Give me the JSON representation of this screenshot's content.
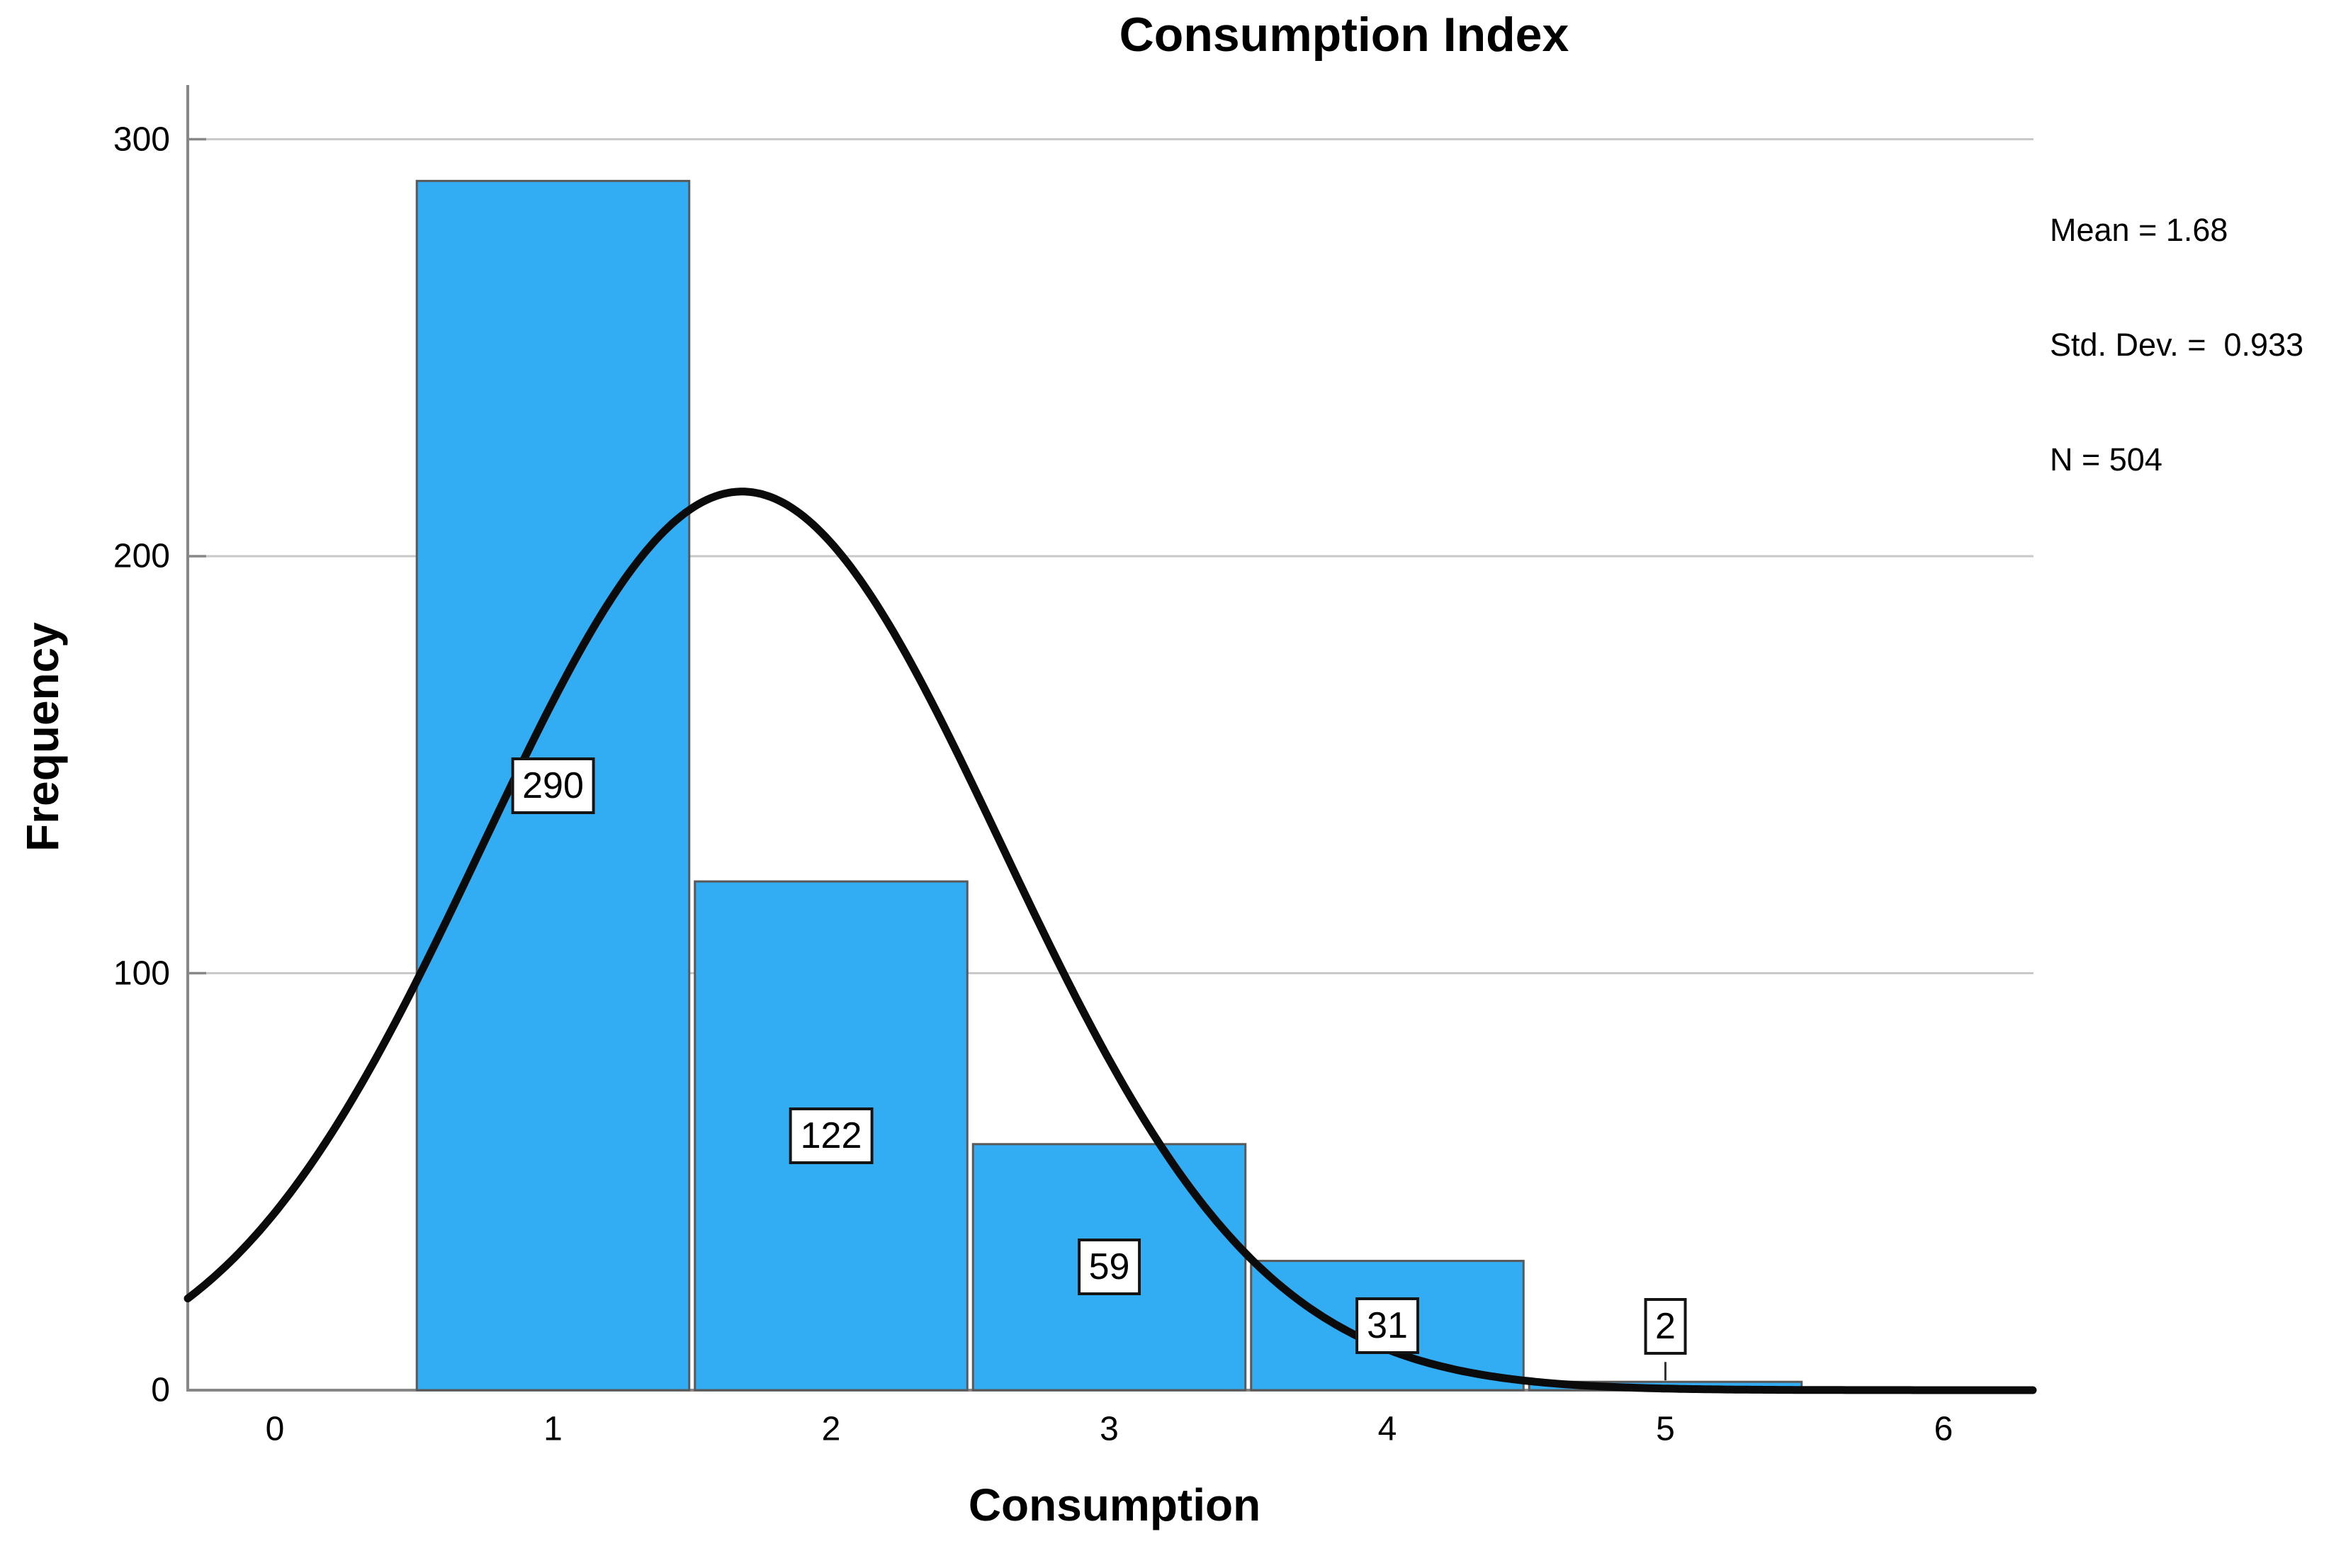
{
  "title": "Consumption Index",
  "axes": {
    "x_label": "Consumption",
    "y_label": "Frequency"
  },
  "stats_box": {
    "lines": [
      "Mean = 1.68",
      "Std. Dev. =  0.933",
      "N = 504"
    ]
  },
  "chart_data": {
    "type": "bar",
    "subtype": "histogram-with-normal-curve",
    "title": "Consumption Index",
    "xlabel": "Consumption",
    "ylabel": "Frequency",
    "bin_centers": [
      1,
      2,
      3,
      4,
      5
    ],
    "bin_width": 1,
    "frequencies": [
      290,
      122,
      59,
      31,
      2
    ],
    "bar_labels": [
      "290",
      "122",
      "59",
      "31",
      "2"
    ],
    "normal_curve": {
      "mean": 1.68,
      "std_dev": 0.933,
      "n": 504
    },
    "x_ticks": [
      0,
      1,
      2,
      3,
      4,
      5,
      6
    ],
    "y_ticks": [
      0,
      100,
      200,
      300
    ],
    "xlim": [
      -0.32,
      6.33
    ],
    "ylim": [
      0,
      313
    ],
    "grid": "horizontal gridlines at 100, 200, 300",
    "legend": "none",
    "annotations": [
      "Mean = 1.68",
      "Std. Dev. =  0.933",
      "N = 504"
    ]
  },
  "colors": {
    "bar_fill": "#32ACF3",
    "bar_border": "#595959",
    "curve": "#0b0b0b",
    "axis": "#878787",
    "gridline": "#c9c9c9",
    "label_box_bg": "#ffffff",
    "label_box_border": "#141414",
    "text": "#000000",
    "background": "#ffffff"
  }
}
